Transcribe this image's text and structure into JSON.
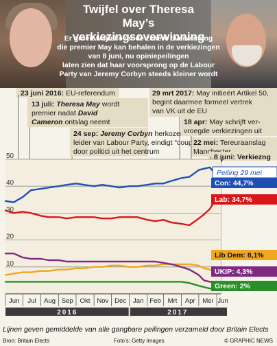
{
  "header": {
    "title_line1": "Twijfel over Theresa May’s",
    "title_line2": "verkiezingsoverwinning",
    "subtitle_lines": [
      "Er groeit twijfel over de zekere overwinning",
      "die premier May kan behalen in de verkiezingen",
      "van 8 juni, nu opiniepeilingen",
      "laten zien dat haar voorsprong op de Labour",
      "Party van Jeremy Corbyn steeds kleiner wordt"
    ]
  },
  "events": {
    "referendum": {
      "date": "23 juni 2016:",
      "text": "EU-referendum"
    },
    "may": {
      "date": "13 juli:",
      "name": "Theresa May",
      "text1": "wordt",
      "text2": "premier nadat",
      "name2": "David",
      "name3": "Cameron",
      "text3": "ontslag neemt"
    },
    "corbyn": {
      "date": "24 sep:",
      "name": "Jeremy Corbyn",
      "text1": "herkozen als",
      "text2": "leider van Labour Party, eindigt “coup”",
      "text3": "door politici uit het centrum"
    },
    "article50": {
      "date": "29 mrt 2017:",
      "text1": "May initieërt Artikel 50,",
      "text2": "begint daarmee formeel vertrek",
      "text3": "van VK uit de EU"
    },
    "snap": {
      "date": "18 apr:",
      "text1": "May schrijft ver-",
      "text2": "vroegde verkiezingen uit"
    },
    "manchester": {
      "date": "22 mei:",
      "text1": "Tereuraanslag",
      "text2": "Manchester"
    },
    "election": {
      "date": "8 juni:",
      "text": "Verkiezng"
    }
  },
  "poll_badge": "Peiling 29 mei",
  "chart_data": {
    "type": "line",
    "x": [
      "2016-06-01",
      "2016-06-15",
      "2016-07-01",
      "2016-07-15",
      "2016-08-01",
      "2016-08-15",
      "2016-09-01",
      "2016-09-15",
      "2016-10-01",
      "2016-10-15",
      "2016-11-01",
      "2016-11-15",
      "2016-12-01",
      "2016-12-15",
      "2017-01-01",
      "2017-01-15",
      "2017-02-01",
      "2017-02-15",
      "2017-03-01",
      "2017-03-15",
      "2017-04-01",
      "2017-04-15",
      "2017-05-01",
      "2017-05-10",
      "2017-05-20",
      "2017-05-29"
    ],
    "series": [
      {
        "name": "Con",
        "label": "Con: 44,7%",
        "color": "#1f4fb5",
        "values": [
          34.5,
          34,
          36,
          38.5,
          39,
          39.5,
          40,
          40.5,
          41,
          40.5,
          40,
          40.5,
          40,
          39.5,
          40,
          40,
          40.5,
          41,
          41,
          42,
          43,
          43.5,
          46,
          46.5,
          47,
          44.7
        ]
      },
      {
        "name": "Lab",
        "label": "Lab: 34,7%",
        "color": "#d8161a",
        "values": [
          31,
          30,
          30.5,
          30,
          29,
          28.5,
          28.5,
          28,
          28.5,
          28.5,
          28.5,
          28,
          28,
          28.5,
          28.5,
          28.5,
          27.5,
          27,
          27.5,
          26.5,
          26,
          25.5,
          28,
          29.5,
          31.5,
          34.7
        ]
      },
      {
        "name": "Lib Dem",
        "label": "Lib Dem: 8,1%",
        "color": "#f0a81f",
        "values": [
          7,
          7.5,
          8,
          8,
          8.5,
          8.5,
          9,
          9,
          9.5,
          9.5,
          10,
          10,
          10.5,
          10.5,
          10,
          10,
          10.5,
          10.5,
          11,
          11,
          11,
          11,
          10.5,
          9.5,
          9,
          8.1
        ]
      },
      {
        "name": "UKIP",
        "label": "UKIP: 4,3%",
        "color": "#7d2a80",
        "values": [
          15,
          15,
          13.5,
          13,
          13,
          12.5,
          12.5,
          12,
          12,
          12,
          12,
          12,
          12,
          12,
          12,
          12,
          12,
          12,
          11.5,
          11,
          10,
          9,
          7,
          5,
          4.5,
          4.3
        ]
      },
      {
        "name": "Green",
        "label": "Green: 2%",
        "color": "#2a8f2a",
        "values": [
          4.5,
          4.5,
          4.5,
          4.5,
          4.5,
          4.5,
          4.5,
          4.5,
          4.5,
          4.5,
          4.5,
          4.5,
          4.5,
          4.5,
          4.5,
          4.5,
          4.5,
          4.5,
          4.5,
          4.5,
          4.5,
          4,
          3,
          2.5,
          2,
          2
        ]
      }
    ],
    "ylim": [
      0,
      50
    ],
    "yticks": [
      10,
      20,
      30,
      40,
      50
    ],
    "months": [
      "Jun",
      "Jul",
      "Aug",
      "Sep",
      "Okt",
      "Nov",
      "Dec",
      "Jan",
      "Feb",
      "Mrt",
      "Apr",
      "Mei",
      "Jun"
    ],
    "years": [
      "2016",
      "2017"
    ],
    "grid": true
  },
  "footer": {
    "note": "Lijnen geven gemiddelde van alle gangbare peilingen verzameld door Britain Elects",
    "source": "Bron: Britain Elects",
    "photos": "Foto’s: Getty Images",
    "credit": "© GRAPHIC NEWS"
  }
}
